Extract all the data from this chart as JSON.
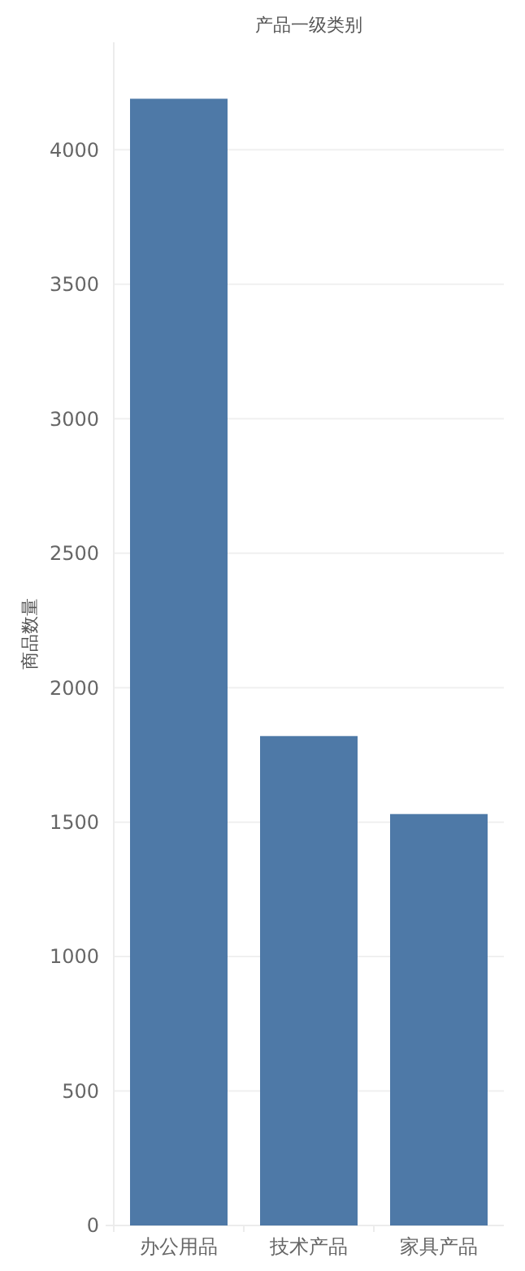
{
  "chart_data": {
    "type": "bar",
    "xlabel": "产品一级类别",
    "ylabel": "商品数量",
    "categories": [
      "办公用品",
      "技术产品",
      "家具产品"
    ],
    "values": [
      4190,
      1820,
      1530
    ],
    "color": "#4e79a7",
    "ylim": [
      0,
      4400
    ],
    "yticks": [
      0,
      500,
      1000,
      1500,
      2000,
      2500,
      3000,
      3500,
      4000
    ],
    "grid": "y"
  }
}
